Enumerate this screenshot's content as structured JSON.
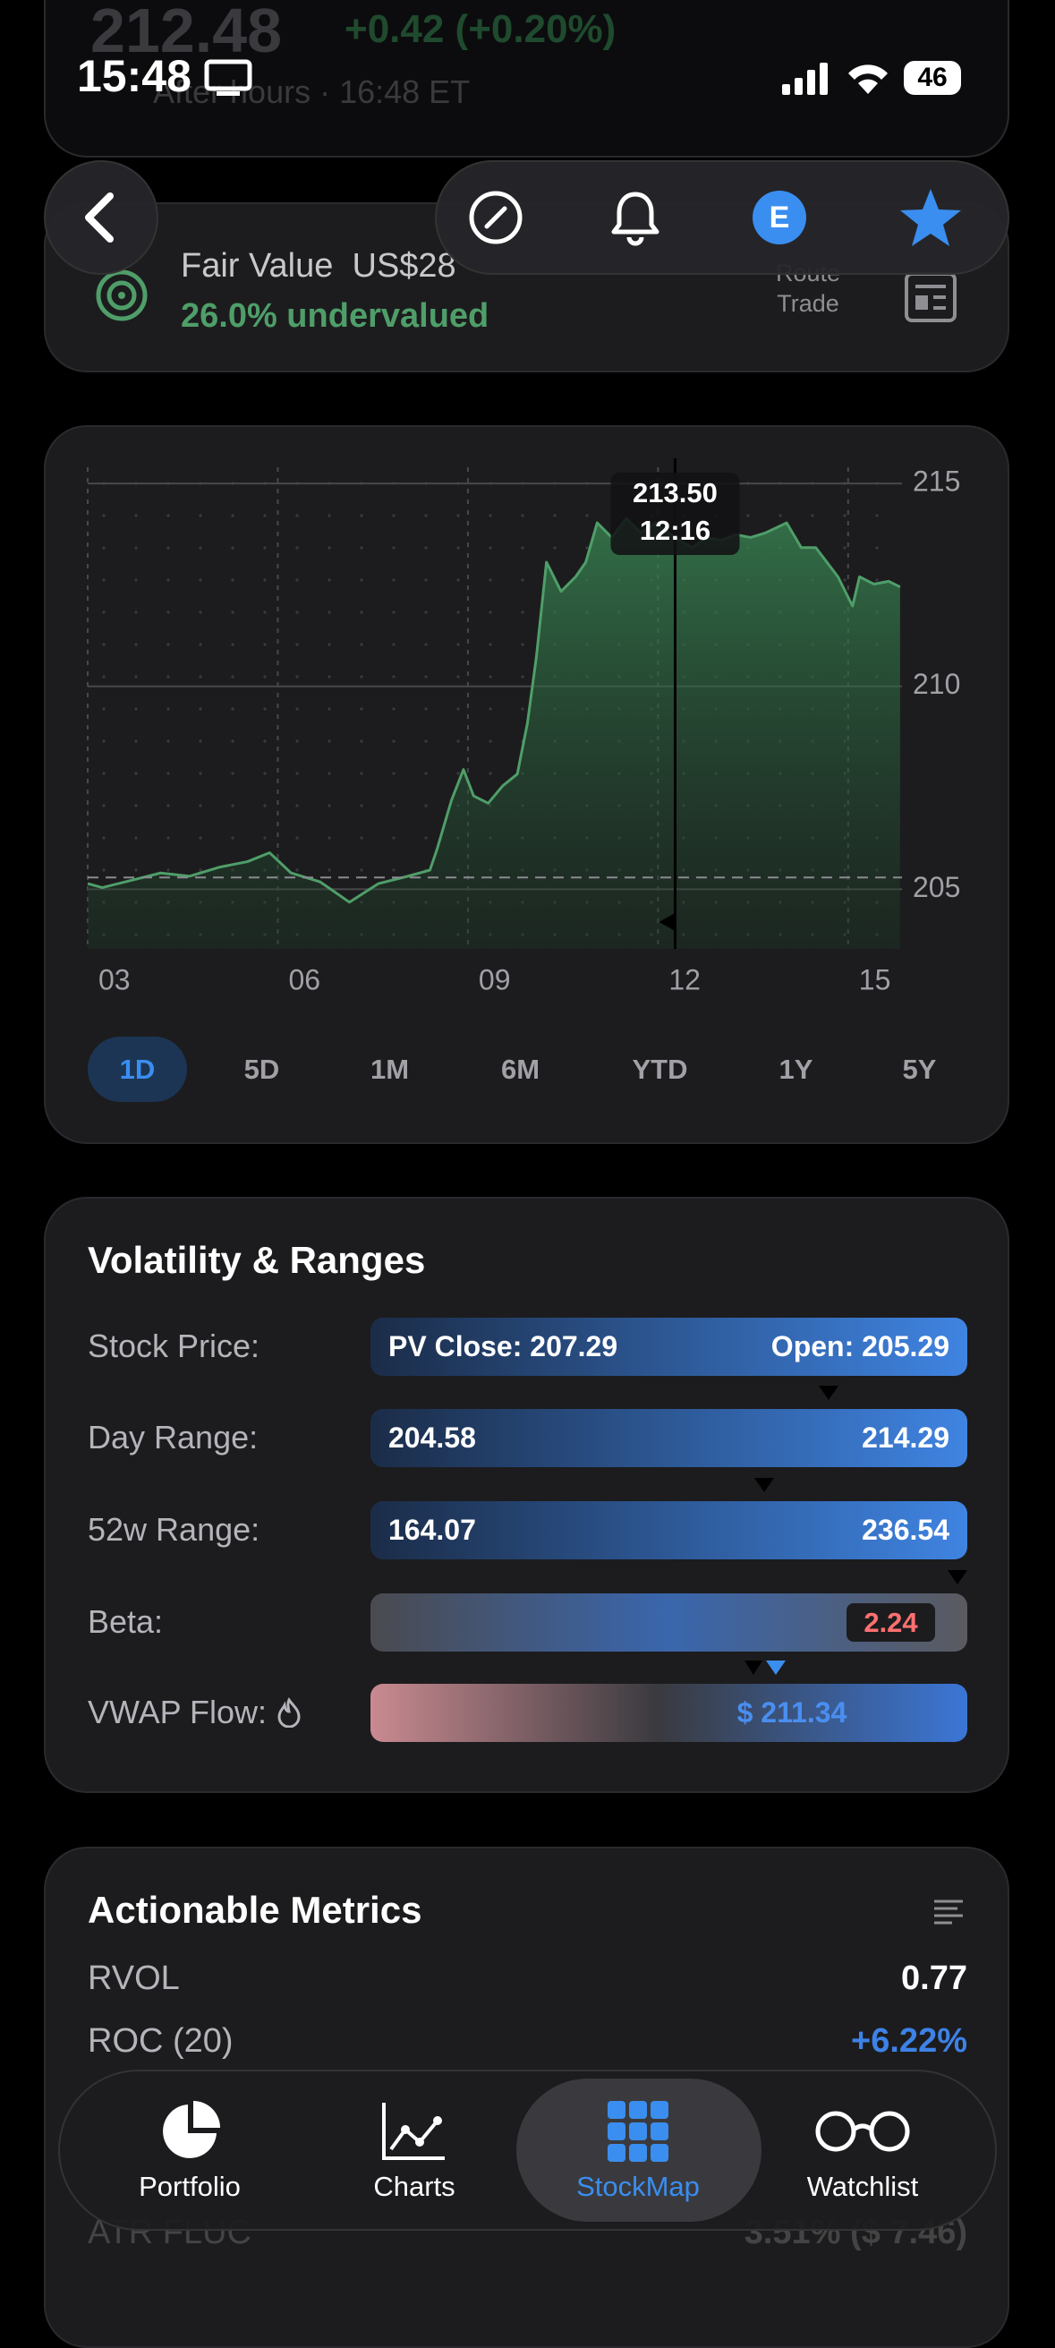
{
  "status_bar": {
    "time": "15:48",
    "battery": "46"
  },
  "header": {
    "price": "212.48",
    "change": "+0.42 (+0.20%)",
    "after_hours": "After hours · 16:48 ET"
  },
  "fair_value": {
    "label": "Fair Value",
    "value": "US$28",
    "verdict": "26.0% undervalued",
    "route": "Route",
    "trade": "Trade"
  },
  "toolbar": {
    "avatar": "E"
  },
  "chart_data": {
    "type": "line",
    "color": "#4f9e69",
    "x": [
      3.0,
      3.23,
      3.69,
      4.15,
      4.61,
      5.07,
      5.52,
      5.87,
      6.21,
      6.67,
      7.13,
      7.59,
      8.05,
      8.4,
      8.51,
      8.74,
      8.93,
      9.09,
      9.32,
      9.55,
      9.78,
      9.94,
      10.08,
      10.24,
      10.47,
      10.7,
      10.86,
      11.04,
      11.27,
      11.5,
      11.73,
      11.96,
      12.26,
      12.54,
      12.77,
      13.0,
      13.23,
      13.46,
      13.69,
      14.03,
      14.26,
      14.49,
      14.84,
      15.07,
      15.18,
      15.41,
      15.64,
      15.82
    ],
    "values": [
      205.14,
      205.04,
      205.22,
      205.4,
      205.32,
      205.54,
      205.68,
      205.9,
      205.4,
      205.18,
      204.68,
      205.14,
      205.32,
      205.47,
      205.97,
      207.19,
      207.95,
      207.3,
      207.12,
      207.55,
      207.84,
      209.1,
      210.72,
      213.06,
      212.34,
      212.7,
      213.06,
      214.03,
      213.67,
      214.14,
      213.78,
      214.03,
      213.67,
      213.42,
      213.67,
      213.6,
      213.74,
      213.67,
      213.78,
      214.03,
      213.42,
      213.42,
      212.7,
      211.98,
      212.7,
      212.52,
      212.59,
      212.45
    ],
    "xlim": [
      3,
      15.85
    ],
    "ylim": [
      203.53,
      215.4
    ],
    "xticks": [
      {
        "value": 3,
        "label": "03"
      },
      {
        "value": 6,
        "label": "06"
      },
      {
        "value": 9,
        "label": "09"
      },
      {
        "value": 12,
        "label": "12"
      },
      {
        "value": 15,
        "label": "15"
      }
    ],
    "yticks": [
      205,
      210,
      215
    ],
    "grid": true,
    "reference_line": 205.29,
    "tooltip": {
      "x": 12.27,
      "value": "213.50",
      "time": "12:16"
    }
  },
  "ranges": {
    "options": [
      "1D",
      "5D",
      "1M",
      "6M",
      "YTD",
      "1Y",
      "5Y"
    ],
    "selected": 0
  },
  "volatility": {
    "title": "Volatility & Ranges",
    "rows": [
      {
        "label": "Stock Price:",
        "left": "PV Close: 207.29",
        "right": "Open: 205.29"
      },
      {
        "label": "Day Range:",
        "left": "204.58",
        "right": "214.29"
      },
      {
        "label": "52w Range:",
        "left": "164.07",
        "right": "236.54"
      },
      {
        "label": "Beta:",
        "value": "2.24"
      },
      {
        "label": "VWAP Flow:",
        "value": "$ 211.34"
      }
    ]
  },
  "metrics": {
    "title": "Actionable Metrics",
    "rows": [
      [
        "RVOL",
        "0.77"
      ],
      [
        "ROC (20)",
        "+6.22%"
      ],
      [
        "ATR FLUC",
        "3.51% ($ 7.46)"
      ]
    ]
  },
  "tabs": {
    "items": [
      "Portfolio",
      "Charts",
      "StockMap",
      "Watchlist"
    ],
    "active": 2
  }
}
